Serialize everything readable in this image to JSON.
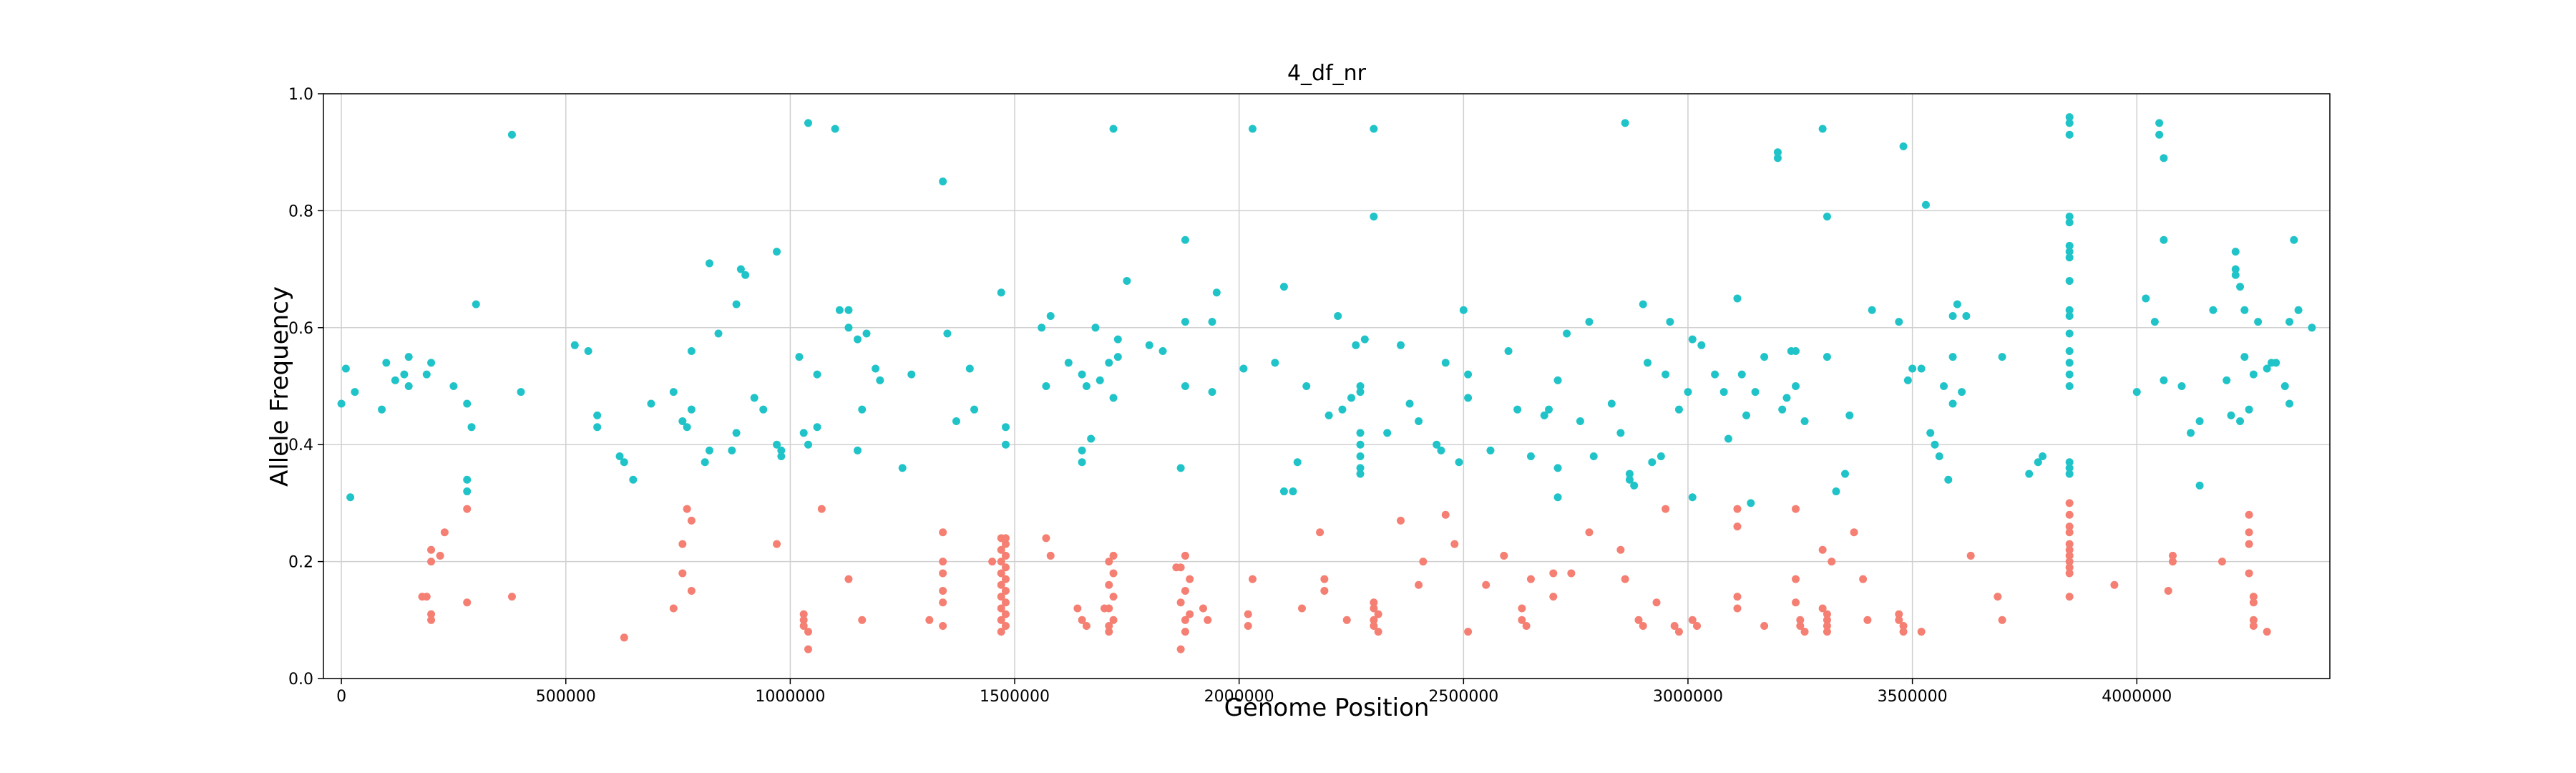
{
  "chart_data": {
    "type": "scatter",
    "title": "4_df_nr",
    "x_label": "Genome Position",
    "y_label": "Allele Frequency",
    "xlim": [
      -40000,
      4430000
    ],
    "ylim": [
      0,
      1
    ],
    "xticks": [
      0,
      500000,
      1000000,
      1500000,
      2000000,
      2500000,
      3000000,
      3500000,
      4000000
    ],
    "yticks": [
      {
        "value": 0,
        "label": "0.0"
      },
      0.2,
      0.4,
      0.6,
      0.8,
      {
        "value": 1,
        "label": "1.0"
      }
    ],
    "grid": true,
    "series": [
      {
        "color": "#20c4c8",
        "x": [
          0,
          10000,
          20000,
          30000,
          90000,
          100000,
          120000,
          140000,
          150000,
          150000,
          190000,
          200000,
          250000,
          280000,
          280000,
          280000,
          290000,
          300000,
          380000,
          400000,
          520000,
          550000,
          570000,
          570000,
          620000,
          630000,
          650000,
          690000,
          740000,
          760000,
          770000,
          780000,
          780000,
          810000,
          820000,
          820000,
          840000,
          870000,
          880000,
          880000,
          890000,
          900000,
          920000,
          940000,
          970000,
          970000,
          980000,
          980000,
          1020000,
          1030000,
          1040000,
          1040000,
          1060000,
          1060000,
          1100000,
          1110000,
          1130000,
          1130000,
          1150000,
          1150000,
          1160000,
          1170000,
          1190000,
          1200000,
          1250000,
          1270000,
          1340000,
          1350000,
          1370000,
          1400000,
          1410000,
          1470000,
          1480000,
          1480000,
          1560000,
          1570000,
          1580000,
          1620000,
          1650000,
          1650000,
          1650000,
          1660000,
          1670000,
          1680000,
          1690000,
          1710000,
          1720000,
          1720000,
          1730000,
          1730000,
          1750000,
          1800000,
          1830000,
          1870000,
          1880000,
          1880000,
          1880000,
          1940000,
          1940000,
          1950000,
          2010000,
          2030000,
          2080000,
          2100000,
          2100000,
          2120000,
          2130000,
          2150000,
          2200000,
          2220000,
          2230000,
          2250000,
          2260000,
          2270000,
          2270000,
          2270000,
          2270000,
          2270000,
          2270000,
          2270000,
          2280000,
          2300000,
          2300000,
          2330000,
          2360000,
          2380000,
          2400000,
          2440000,
          2450000,
          2460000,
          2490000,
          2500000,
          2510000,
          2510000,
          2560000,
          2600000,
          2620000,
          2650000,
          2680000,
          2690000,
          2710000,
          2710000,
          2710000,
          2730000,
          2760000,
          2780000,
          2790000,
          2830000,
          2850000,
          2860000,
          2870000,
          2870000,
          2880000,
          2900000,
          2910000,
          2920000,
          2940000,
          2950000,
          2960000,
          2980000,
          3000000,
          3010000,
          3010000,
          3030000,
          3060000,
          3080000,
          3090000,
          3110000,
          3120000,
          3130000,
          3140000,
          3150000,
          3170000,
          3200000,
          3200000,
          3210000,
          3220000,
          3230000,
          3240000,
          3240000,
          3260000,
          3300000,
          3310000,
          3310000,
          3330000,
          3350000,
          3360000,
          3410000,
          3470000,
          3480000,
          3490000,
          3500000,
          3520000,
          3530000,
          3540000,
          3550000,
          3560000,
          3570000,
          3580000,
          3590000,
          3590000,
          3590000,
          3600000,
          3610000,
          3620000,
          3700000,
          3760000,
          3780000,
          3790000,
          3850000,
          3850000,
          3850000,
          3850000,
          3850000,
          3850000,
          3850000,
          3850000,
          3850000,
          3850000,
          3850000,
          3850000,
          3850000,
          3850000,
          3850000,
          3850000,
          3850000,
          3850000,
          3850000,
          4000000,
          4020000,
          4040000,
          4050000,
          4050000,
          4060000,
          4060000,
          4060000,
          4100000,
          4120000,
          4140000,
          4140000,
          4170000,
          4200000,
          4210000,
          4220000,
          4220000,
          4220000,
          4230000,
          4230000,
          4240000,
          4240000,
          4250000,
          4260000,
          4270000,
          4290000,
          4300000,
          4310000,
          4330000,
          4340000,
          4340000,
          4350000,
          4360000,
          4390000
        ],
        "values": [
          0.47,
          0.53,
          0.31,
          0.49,
          0.46,
          0.54,
          0.51,
          0.52,
          0.55,
          0.5,
          0.52,
          0.54,
          0.5,
          0.47,
          0.34,
          0.32,
          0.43,
          0.64,
          0.93,
          0.49,
          0.57,
          0.56,
          0.45,
          0.43,
          0.38,
          0.37,
          0.34,
          0.47,
          0.49,
          0.44,
          0.43,
          0.46,
          0.56,
          0.37,
          0.39,
          0.71,
          0.59,
          0.39,
          0.42,
          0.64,
          0.7,
          0.69,
          0.48,
          0.46,
          0.73,
          0.4,
          0.39,
          0.38,
          0.55,
          0.42,
          0.95,
          0.4,
          0.43,
          0.52,
          0.94,
          0.63,
          0.63,
          0.6,
          0.58,
          0.39,
          0.46,
          0.59,
          0.53,
          0.51,
          0.36,
          0.52,
          0.85,
          0.59,
          0.44,
          0.53,
          0.46,
          0.66,
          0.4,
          0.43,
          0.6,
          0.5,
          0.62,
          0.54,
          0.52,
          0.39,
          0.37,
          0.5,
          0.41,
          0.6,
          0.51,
          0.54,
          0.94,
          0.48,
          0.55,
          0.58,
          0.68,
          0.57,
          0.56,
          0.36,
          0.75,
          0.61,
          0.5,
          0.49,
          0.61,
          0.66,
          0.53,
          0.94,
          0.54,
          0.67,
          0.32,
          0.32,
          0.37,
          0.5,
          0.45,
          0.62,
          0.46,
          0.48,
          0.57,
          0.5,
          0.49,
          0.42,
          0.4,
          0.38,
          0.36,
          0.35,
          0.58,
          0.94,
          0.79,
          0.42,
          0.57,
          0.47,
          0.44,
          0.4,
          0.39,
          0.54,
          0.37,
          0.63,
          0.52,
          0.48,
          0.39,
          0.56,
          0.46,
          0.38,
          0.45,
          0.46,
          0.51,
          0.36,
          0.31,
          0.59,
          0.44,
          0.61,
          0.38,
          0.47,
          0.42,
          0.95,
          0.35,
          0.34,
          0.33,
          0.64,
          0.54,
          0.37,
          0.38,
          0.52,
          0.61,
          0.46,
          0.49,
          0.58,
          0.31,
          0.57,
          0.52,
          0.49,
          0.41,
          0.65,
          0.52,
          0.45,
          0.3,
          0.49,
          0.55,
          0.9,
          0.89,
          0.46,
          0.48,
          0.56,
          0.56,
          0.5,
          0.44,
          0.94,
          0.79,
          0.55,
          0.32,
          0.35,
          0.45,
          0.63,
          0.61,
          0.91,
          0.51,
          0.53,
          0.53,
          0.81,
          0.42,
          0.4,
          0.38,
          0.5,
          0.34,
          0.47,
          0.55,
          0.62,
          0.64,
          0.49,
          0.62,
          0.55,
          0.35,
          0.37,
          0.38,
          0.96,
          0.95,
          0.93,
          0.79,
          0.78,
          0.74,
          0.73,
          0.72,
          0.68,
          0.63,
          0.62,
          0.59,
          0.56,
          0.54,
          0.52,
          0.5,
          0.37,
          0.36,
          0.35,
          0.49,
          0.65,
          0.61,
          0.95,
          0.93,
          0.89,
          0.75,
          0.51,
          0.5,
          0.42,
          0.44,
          0.33,
          0.63,
          0.51,
          0.45,
          0.73,
          0.7,
          0.69,
          0.44,
          0.67,
          0.63,
          0.55,
          0.46,
          0.52,
          0.61,
          0.53,
          0.54,
          0.54,
          0.5,
          0.47,
          0.61,
          0.75,
          0.63,
          0.6
        ]
      },
      {
        "color": "#f47f72",
        "x": [
          180000,
          190000,
          200000,
          200000,
          200000,
          200000,
          220000,
          230000,
          280000,
          280000,
          380000,
          630000,
          740000,
          760000,
          760000,
          770000,
          780000,
          780000,
          970000,
          1030000,
          1030000,
          1030000,
          1040000,
          1040000,
          1070000,
          1130000,
          1160000,
          1310000,
          1340000,
          1340000,
          1340000,
          1340000,
          1340000,
          1340000,
          1450000,
          1470000,
          1480000,
          1470000,
          1480000,
          1470000,
          1480000,
          1470000,
          1480000,
          1470000,
          1480000,
          1470000,
          1480000,
          1470000,
          1480000,
          1470000,
          1480000,
          1470000,
          1480000,
          1570000,
          1580000,
          1640000,
          1650000,
          1660000,
          1700000,
          1710000,
          1720000,
          1710000,
          1720000,
          1710000,
          1720000,
          1710000,
          1720000,
          1710000,
          1860000,
          1870000,
          1880000,
          1890000,
          1870000,
          1880000,
          1890000,
          1870000,
          1880000,
          1880000,
          1920000,
          1930000,
          2020000,
          2020000,
          2030000,
          2140000,
          2180000,
          2190000,
          2190000,
          2240000,
          2300000,
          2300000,
          2300000,
          2300000,
          2310000,
          2310000,
          2360000,
          2400000,
          2410000,
          2460000,
          2480000,
          2510000,
          2550000,
          2590000,
          2630000,
          2630000,
          2640000,
          2650000,
          2700000,
          2700000,
          2740000,
          2780000,
          2850000,
          2860000,
          2890000,
          2900000,
          2930000,
          2950000,
          2970000,
          2980000,
          3010000,
          3020000,
          3110000,
          3110000,
          3110000,
          3110000,
          3170000,
          3240000,
          3240000,
          3240000,
          3250000,
          3250000,
          3260000,
          3300000,
          3300000,
          3310000,
          3310000,
          3310000,
          3310000,
          3320000,
          3370000,
          3390000,
          3400000,
          3470000,
          3470000,
          3480000,
          3480000,
          3520000,
          3630000,
          3690000,
          3700000,
          3850000,
          3850000,
          3850000,
          3850000,
          3850000,
          3850000,
          3850000,
          3850000,
          3850000,
          3850000,
          3850000,
          3950000,
          4070000,
          4080000,
          4080000,
          4190000,
          4250000,
          4250000,
          4250000,
          4250000,
          4260000,
          4260000,
          4260000,
          4260000,
          4290000
        ],
        "values": [
          0.14,
          0.14,
          0.11,
          0.1,
          0.2,
          0.22,
          0.21,
          0.25,
          0.29,
          0.13,
          0.14,
          0.07,
          0.12,
          0.23,
          0.18,
          0.29,
          0.27,
          0.15,
          0.23,
          0.11,
          0.1,
          0.09,
          0.08,
          0.05,
          0.29,
          0.17,
          0.1,
          0.1,
          0.25,
          0.2,
          0.18,
          0.15,
          0.13,
          0.09,
          0.2,
          0.08,
          0.09,
          0.1,
          0.11,
          0.12,
          0.13,
          0.14,
          0.15,
          0.16,
          0.17,
          0.18,
          0.19,
          0.2,
          0.21,
          0.22,
          0.23,
          0.24,
          0.24,
          0.24,
          0.21,
          0.12,
          0.1,
          0.09,
          0.12,
          0.08,
          0.1,
          0.12,
          0.14,
          0.16,
          0.18,
          0.2,
          0.21,
          0.09,
          0.19,
          0.05,
          0.08,
          0.11,
          0.13,
          0.15,
          0.17,
          0.19,
          0.21,
          0.1,
          0.12,
          0.1,
          0.11,
          0.09,
          0.17,
          0.12,
          0.25,
          0.17,
          0.15,
          0.1,
          0.13,
          0.12,
          0.1,
          0.09,
          0.08,
          0.11,
          0.27,
          0.16,
          0.2,
          0.28,
          0.23,
          0.08,
          0.16,
          0.21,
          0.12,
          0.1,
          0.09,
          0.17,
          0.18,
          0.14,
          0.18,
          0.25,
          0.22,
          0.17,
          0.1,
          0.09,
          0.13,
          0.29,
          0.09,
          0.08,
          0.1,
          0.09,
          0.14,
          0.12,
          0.29,
          0.26,
          0.09,
          0.29,
          0.17,
          0.13,
          0.1,
          0.09,
          0.08,
          0.22,
          0.12,
          0.11,
          0.1,
          0.09,
          0.08,
          0.2,
          0.25,
          0.17,
          0.1,
          0.11,
          0.1,
          0.09,
          0.08,
          0.08,
          0.21,
          0.14,
          0.1,
          0.3,
          0.28,
          0.26,
          0.25,
          0.23,
          0.22,
          0.21,
          0.2,
          0.19,
          0.18,
          0.14,
          0.16,
          0.15,
          0.21,
          0.2,
          0.2,
          0.28,
          0.25,
          0.23,
          0.18,
          0.14,
          0.13,
          0.1,
          0.09,
          0.08
        ]
      }
    ]
  }
}
